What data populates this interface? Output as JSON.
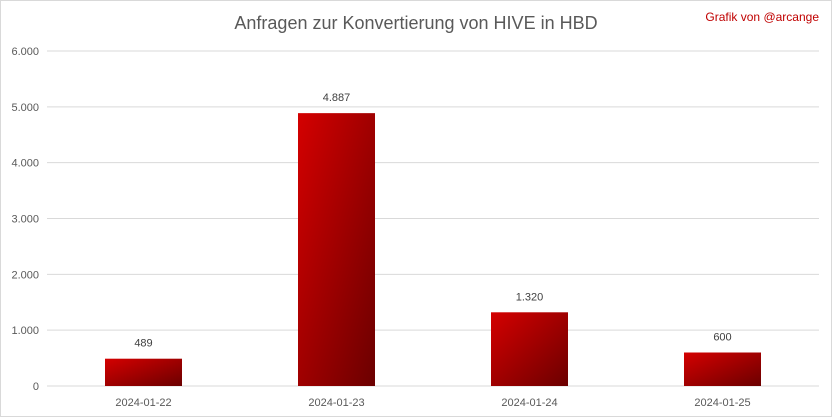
{
  "header": {
    "title": "Anfragen zur Konvertierung von HIVE in HBD",
    "credit": "Grafik von @arcange"
  },
  "colors": {
    "bar_top": "#d40000",
    "bar_bottom": "#6b0000",
    "grid": "#d9d9d9",
    "text": "#595959"
  },
  "chart_data": {
    "type": "bar",
    "title": "Anfragen zur Konvertierung von HIVE in HBD",
    "categories": [
      "2024-01-22",
      "2024-01-23",
      "2024-01-24",
      "2024-01-25"
    ],
    "values": [
      489,
      4887,
      1320,
      600
    ],
    "value_labels": [
      "489",
      "4.887",
      "1.320",
      "600"
    ],
    "ylim": [
      0,
      6000
    ],
    "yticks": [
      0,
      1000,
      2000,
      3000,
      4000,
      5000,
      6000
    ],
    "ytick_labels": [
      "0",
      "1.000",
      "2.000",
      "3.000",
      "4.000",
      "5.000",
      "6.000"
    ],
    "xlabel": "",
    "ylabel": "",
    "grid": true,
    "legend": "none"
  }
}
